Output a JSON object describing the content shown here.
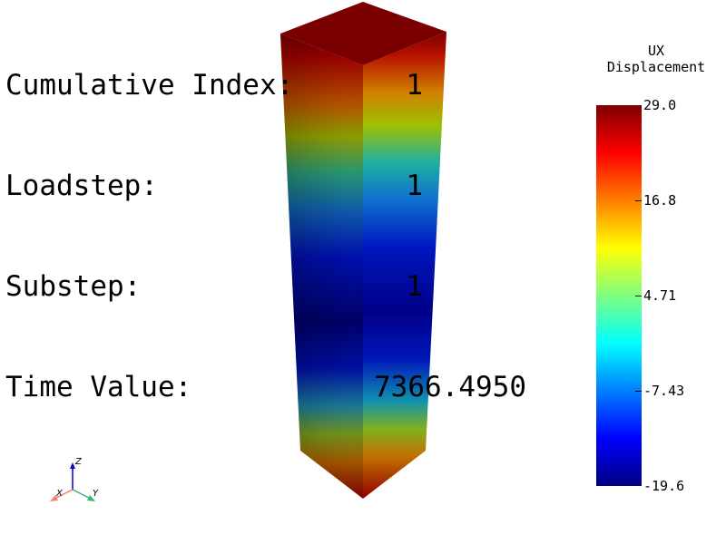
{
  "info": {
    "cumulative_index": {
      "label": "Cumulative Index:",
      "value": "1"
    },
    "loadstep": {
      "label": "Loadstep:",
      "value": "1"
    },
    "substep": {
      "label": "Substep:",
      "value": "1"
    },
    "time_value": {
      "label": "Time Value:",
      "value": "7366.4950"
    }
  },
  "colorbar": {
    "title_line1": "UX",
    "title_line2": "Displacement",
    "ticks": [
      "29.0",
      "16.8",
      "4.71",
      "-7.43",
      "-19.6"
    ],
    "min": -19.6,
    "max": 29.0,
    "colors": [
      "#00007f",
      "#0000ff",
      "#007fff",
      "#00ffff",
      "#7fff7f",
      "#ffff00",
      "#ff7f00",
      "#ff0000",
      "#7f0000"
    ]
  },
  "axes": {
    "x_label": "X",
    "y_label": "Y",
    "z_label": "Z",
    "x_color": "#f08070",
    "y_color": "#3cb371",
    "z_color": "#0000cc"
  }
}
